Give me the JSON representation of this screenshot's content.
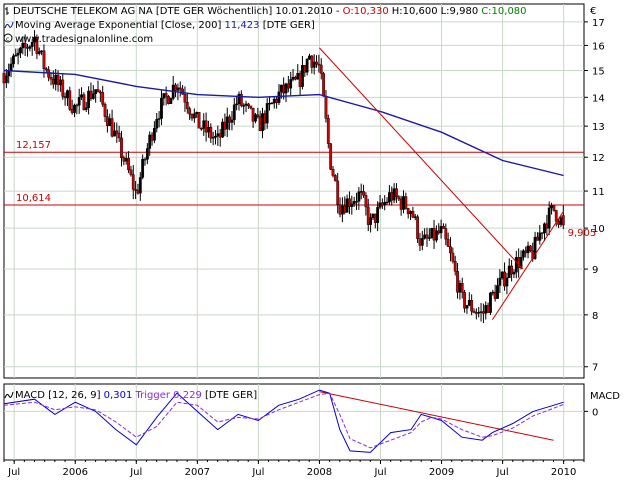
{
  "header": {
    "line1_prefix": "DEUTSCHE TELEKOM AG NA [DTE GER  Wöchentlich] 10.01.2010 - ",
    "open": "O:10,330",
    "high": "H:10,600",
    "low": "L:9,980",
    "close": "C:10,080",
    "line2_prefix": "Moving Average Exponential [Close, 200] ",
    "ma_value": "11,423",
    "line2_suffix": " [DTE GER]",
    "line3": "www.tradesignalonline.com",
    "currency": "€"
  },
  "macd_header": {
    "prefix": "MACD [12, 26, 9] ",
    "macd_value": "0,301",
    "trigger_text": " Trigger ",
    "trigger_value": "0,229",
    "suffix": " [DTE GER]",
    "axis_label": "MACD"
  },
  "colors": {
    "up": "#000000",
    "down": "#cc0000",
    "ma": "#1a1aa6",
    "macd": "#0000cc",
    "trigger": "#8a2be2",
    "level": "#cc0000",
    "grid": "#c8d8c8",
    "red_text": "#cc0000",
    "blue_text": "#1a1aa6",
    "green_text": "#008000"
  },
  "chart_data": [
    {
      "type": "candlestick",
      "title": "DEUTSCHE TELEKOM AG NA [DTE GER  Wöchentlich]",
      "x_ticks": [
        "Jul",
        "2006",
        "Jul",
        "2007",
        "Jul",
        "2008",
        "Jul",
        "2009",
        "Jul",
        "2010"
      ],
      "x_tick_dates": [
        "2005-07",
        "2006-01",
        "2006-07",
        "2007-01",
        "2007-07",
        "2008-01",
        "2008-07",
        "2009-01",
        "2009-07",
        "2010-01"
      ],
      "y_ticks": [
        7,
        8,
        9,
        10,
        11,
        12,
        13,
        14,
        15,
        16,
        17
      ],
      "y_scale": "log",
      "ylim": [
        6.8,
        17.8
      ],
      "x_range": [
        "2005-06",
        "2010-03"
      ],
      "grid": true,
      "last_bar": {
        "date": "2010-01-10",
        "open": 10.33,
        "high": 10.6,
        "low": 9.98,
        "close": 10.08
      },
      "close_path": [
        [
          "2005-06",
          14.9
        ],
        [
          "2005-09",
          16.3
        ],
        [
          "2005-10",
          15.1
        ],
        [
          "2005-12",
          14.1
        ],
        [
          "2006-01",
          13.6
        ],
        [
          "2006-03",
          14.3
        ],
        [
          "2006-05",
          12.6
        ],
        [
          "2006-07",
          10.9
        ],
        [
          "2006-09",
          13.4
        ],
        [
          "2006-11",
          14.6
        ],
        [
          "2007-01",
          13.1
        ],
        [
          "2007-03",
          12.5
        ],
        [
          "2007-05",
          13.9
        ],
        [
          "2007-07",
          13.0
        ],
        [
          "2007-09",
          14.1
        ],
        [
          "2007-11",
          14.6
        ],
        [
          "2007-12",
          15.6
        ],
        [
          "2008-01",
          15.1
        ],
        [
          "2008-02",
          12.0
        ],
        [
          "2008-03",
          10.6
        ],
        [
          "2008-05",
          10.9
        ],
        [
          "2008-06",
          10.1
        ],
        [
          "2008-08",
          10.9
        ],
        [
          "2008-10",
          10.5
        ],
        [
          "2008-11",
          9.6
        ],
        [
          "2009-01",
          9.9
        ],
        [
          "2009-02",
          9.2
        ],
        [
          "2009-03",
          8.3
        ],
        [
          "2009-05",
          8.0
        ],
        [
          "2009-06",
          8.4
        ],
        [
          "2009-08",
          9.1
        ],
        [
          "2009-10",
          9.4
        ],
        [
          "2009-11",
          10.1
        ],
        [
          "2009-12",
          10.5
        ],
        [
          "2010-01",
          10.08
        ]
      ],
      "moving_average": {
        "name": "Moving Average Exponential [Close, 200]",
        "last_value": 11.423,
        "points": [
          [
            "2005-06",
            15.0
          ],
          [
            "2006-01",
            14.85
          ],
          [
            "2006-07",
            14.4
          ],
          [
            "2007-01",
            14.1
          ],
          [
            "2007-07",
            14.0
          ],
          [
            "2008-01",
            14.1
          ],
          [
            "2008-07",
            13.5
          ],
          [
            "2009-01",
            12.8
          ],
          [
            "2009-07",
            11.9
          ],
          [
            "2010-01",
            11.45
          ]
        ]
      },
      "horizontal_levels": [
        {
          "value": 12.157,
          "label": "12,157"
        },
        {
          "value": 10.614,
          "label": "10,614"
        }
      ],
      "trendlines": [
        {
          "from": [
            "2008-01",
            15.9
          ],
          "to": [
            "2009-09",
            9.0
          ]
        },
        {
          "from": [
            "2009-06",
            7.9
          ],
          "to": [
            "2010-01",
            10.45
          ]
        }
      ],
      "annotations": [
        {
          "text": "9,905",
          "x": "2010-01",
          "y": 9.905
        }
      ]
    },
    {
      "type": "line",
      "title": "MACD [12, 26, 9]",
      "ylabel": "MACD",
      "y_ticks": [
        0
      ],
      "ylim": [
        -1.6,
        0.9
      ],
      "series": [
        {
          "name": "MACD",
          "last_value": 0.301,
          "values": [
            [
              "2005-06",
              0.25
            ],
            [
              "2005-09",
              0.4
            ],
            [
              "2005-11",
              -0.1
            ],
            [
              "2006-01",
              0.3
            ],
            [
              "2006-03",
              0.0
            ],
            [
              "2006-05",
              -0.6
            ],
            [
              "2006-07",
              -1.1
            ],
            [
              "2006-09",
              -0.2
            ],
            [
              "2006-11",
              0.6
            ],
            [
              "2007-01",
              0.0
            ],
            [
              "2007-03",
              -0.6
            ],
            [
              "2007-05",
              -0.1
            ],
            [
              "2007-07",
              -0.3
            ],
            [
              "2007-09",
              0.2
            ],
            [
              "2007-11",
              0.4
            ],
            [
              "2008-01",
              0.7
            ],
            [
              "2008-02",
              0.6
            ],
            [
              "2008-03",
              -0.6
            ],
            [
              "2008-04",
              -1.3
            ],
            [
              "2008-06",
              -1.35
            ],
            [
              "2008-08",
              -0.7
            ],
            [
              "2008-10",
              -0.6
            ],
            [
              "2008-11",
              -0.1
            ],
            [
              "2008-12",
              -0.2
            ],
            [
              "2009-01",
              -0.3
            ],
            [
              "2009-03",
              -0.85
            ],
            [
              "2009-05",
              -0.95
            ],
            [
              "2009-06",
              -0.7
            ],
            [
              "2009-08",
              -0.4
            ],
            [
              "2009-10",
              0.0
            ],
            [
              "2009-12",
              0.2
            ],
            [
              "2010-01",
              0.3
            ]
          ]
        },
        {
          "name": "Trigger",
          "last_value": 0.229,
          "values": [
            [
              "2005-06",
              0.2
            ],
            [
              "2005-09",
              0.3
            ],
            [
              "2005-11",
              0.05
            ],
            [
              "2006-01",
              0.15
            ],
            [
              "2006-03",
              0.05
            ],
            [
              "2006-05",
              -0.35
            ],
            [
              "2006-07",
              -0.85
            ],
            [
              "2006-09",
              -0.5
            ],
            [
              "2006-11",
              0.3
            ],
            [
              "2007-01",
              0.2
            ],
            [
              "2007-03",
              -0.35
            ],
            [
              "2007-05",
              -0.2
            ],
            [
              "2007-07",
              -0.25
            ],
            [
              "2007-09",
              0.05
            ],
            [
              "2007-11",
              0.3
            ],
            [
              "2008-01",
              0.55
            ],
            [
              "2008-02",
              0.6
            ],
            [
              "2008-03",
              -0.1
            ],
            [
              "2008-04",
              -0.9
            ],
            [
              "2008-06",
              -1.2
            ],
            [
              "2008-08",
              -0.95
            ],
            [
              "2008-10",
              -0.7
            ],
            [
              "2008-11",
              -0.35
            ],
            [
              "2008-12",
              -0.2
            ],
            [
              "2009-01",
              -0.25
            ],
            [
              "2009-03",
              -0.6
            ],
            [
              "2009-05",
              -0.85
            ],
            [
              "2009-06",
              -0.8
            ],
            [
              "2009-08",
              -0.55
            ],
            [
              "2009-10",
              -0.15
            ],
            [
              "2009-12",
              0.1
            ],
            [
              "2010-01",
              0.23
            ]
          ]
        }
      ],
      "trendlines": [
        {
          "from": [
            "2008-01",
            0.65
          ],
          "to": [
            "2009-12",
            -0.95
          ]
        }
      ]
    }
  ]
}
